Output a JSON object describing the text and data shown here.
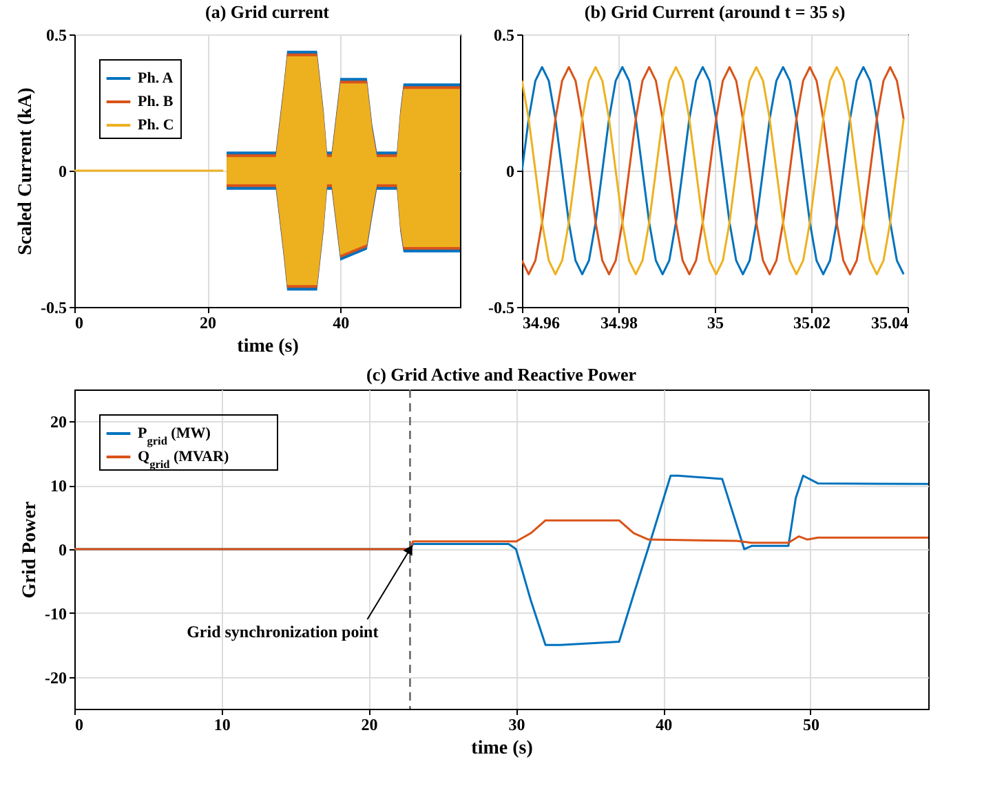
{
  "chart_data": [
    {
      "type": "line",
      "title": "(a) Grid current",
      "xlabel": "time (s)",
      "ylabel": "Scaled Current (kA)",
      "xlim": [
        0,
        58
      ],
      "xticks": [
        0,
        20,
        40
      ],
      "ylim": [
        -0.5,
        0.5
      ],
      "yticks": [
        -0.5,
        0,
        0.5
      ],
      "grid": true,
      "legend": "top left",
      "x": [
        0,
        22.4,
        22.9,
        30.3,
        31.5,
        32,
        36.5,
        37.5,
        38,
        38.7,
        40,
        44,
        44.8,
        45.5,
        48.5,
        49,
        49.5,
        58
      ],
      "series": [
        {
          "name": "Ph. A",
          "color": "#0072bd",
          "values": [
            null,
            null,
            null,
            null,
            null,
            null,
            null,
            null,
            null,
            null,
            null,
            null,
            null,
            null,
            null,
            null,
            null,
            null
          ],
          "lower": [
            null,
            null,
            -0.07,
            -0.07,
            -0.32,
            -0.44,
            -0.44,
            -0.22,
            -0.07,
            -0.07,
            -0.33,
            -0.29,
            -0.17,
            -0.07,
            -0.07,
            -0.22,
            -0.3,
            -0.3
          ],
          "upper": [
            null,
            null,
            0.07,
            0.07,
            0.32,
            0.44,
            0.44,
            0.22,
            0.07,
            0.07,
            0.34,
            0.34,
            0.17,
            0.07,
            0.07,
            0.22,
            0.32,
            0.32
          ]
        },
        {
          "name": "Ph. B",
          "color": "#d95319",
          "values": [
            null,
            null,
            null,
            null,
            null,
            null,
            null,
            null,
            null,
            null,
            null,
            null,
            null,
            null,
            null,
            null,
            null,
            null
          ],
          "lower": [
            null,
            null,
            -0.06,
            -0.06,
            -0.31,
            -0.43,
            -0.43,
            -0.21,
            -0.06,
            -0.06,
            -0.32,
            -0.28,
            -0.16,
            -0.06,
            -0.06,
            -0.21,
            -0.29,
            -0.29
          ],
          "upper": [
            null,
            null,
            0.06,
            0.06,
            0.31,
            0.43,
            0.43,
            0.21,
            0.06,
            0.06,
            0.33,
            0.33,
            0.16,
            0.06,
            0.06,
            0.21,
            0.31,
            0.31
          ]
        },
        {
          "name": "Ph. C",
          "color": "#edb120",
          "values": [
            0,
            0,
            null,
            null,
            null,
            null,
            null,
            null,
            null,
            null,
            null,
            null,
            null,
            null,
            null,
            null,
            null,
            null
          ],
          "lower": [
            null,
            null,
            -0.05,
            -0.05,
            -0.3,
            -0.42,
            -0.42,
            -0.2,
            -0.05,
            -0.05,
            -0.31,
            -0.27,
            -0.15,
            -0.05,
            -0.05,
            -0.2,
            -0.28,
            -0.28
          ],
          "upper": [
            null,
            null,
            0.05,
            0.05,
            0.3,
            0.42,
            0.42,
            0.2,
            0.05,
            0.05,
            0.32,
            0.32,
            0.15,
            0.05,
            0.05,
            0.2,
            0.3,
            0.3
          ]
        }
      ]
    },
    {
      "type": "line",
      "title": "(b) Grid Current (around t = 35 s)",
      "xlim": [
        34.96,
        35.04
      ],
      "xticks": [
        34.96,
        34.98,
        35,
        35.02,
        35.04
      ],
      "ylim": [
        -0.5,
        0.5
      ],
      "yticks": [
        -0.5,
        0,
        0.5
      ],
      "grid": true,
      "x": [
        34.96,
        34.96139,
        34.96278,
        34.96417,
        34.96556,
        34.96694,
        34.96833,
        34.96972,
        34.97111,
        34.9725,
        34.97389,
        34.97528,
        34.97667,
        34.97806,
        34.97944,
        34.98083,
        34.98222,
        34.98361,
        34.985,
        34.98639,
        34.98778,
        34.98917,
        34.99056,
        34.99194,
        34.99333,
        34.99472,
        34.99611,
        34.9975,
        34.99889,
        35.00028,
        35.00167,
        35.00306,
        35.00444,
        35.00583,
        35.00722,
        35.00861,
        35.01,
        35.01139,
        35.01278,
        35.01417,
        35.01556,
        35.01694,
        35.01833,
        35.01972,
        35.02111,
        35.0225,
        35.02389,
        35.02528,
        35.02667,
        35.02806,
        35.02944,
        35.03083,
        35.03222,
        35.03361,
        35.035,
        35.03639,
        35.03778,
        35.03917
      ],
      "series": [
        {
          "color": "#0072bd",
          "values": [
            0,
            0.19,
            0.33,
            0.38,
            0.33,
            0.19,
            0,
            -0.19,
            -0.33,
            -0.38,
            -0.33,
            -0.19,
            0,
            0.19,
            0.33,
            0.38,
            0.33,
            0.19,
            0,
            -0.19,
            -0.33,
            -0.38,
            -0.33,
            -0.19,
            0,
            0.19,
            0.33,
            0.38,
            0.33,
            0.19,
            0,
            -0.19,
            -0.33,
            -0.38,
            -0.33,
            -0.19,
            0,
            0.19,
            0.33,
            0.38,
            0.33,
            0.19,
            0,
            -0.19,
            -0.33,
            -0.38,
            -0.33,
            -0.19,
            0,
            0.19,
            0.33,
            0.38,
            0.33,
            0.19,
            0,
            -0.19,
            -0.33,
            -0.38
          ]
        },
        {
          "color": "#d95319",
          "values": [
            -0.33,
            -0.38,
            -0.33,
            -0.19,
            0,
            0.19,
            0.33,
            0.38,
            0.33,
            0.19,
            0,
            -0.19,
            -0.33,
            -0.38,
            -0.33,
            -0.19,
            0,
            0.19,
            0.33,
            0.38,
            0.33,
            0.19,
            0,
            -0.19,
            -0.33,
            -0.38,
            -0.33,
            -0.19,
            0,
            0.19,
            0.33,
            0.38,
            0.33,
            0.19,
            0,
            -0.19,
            -0.33,
            -0.38,
            -0.33,
            -0.19,
            0,
            0.19,
            0.33,
            0.38,
            0.33,
            0.19,
            0,
            -0.19,
            -0.33,
            -0.38,
            -0.33,
            -0.19,
            0,
            0.19,
            0.33,
            0.38,
            0.33,
            0.19
          ]
        },
        {
          "color": "#edb120",
          "values": [
            0.33,
            0.19,
            0,
            -0.19,
            -0.33,
            -0.38,
            -0.33,
            -0.19,
            0,
            0.19,
            0.33,
            0.38,
            0.33,
            0.19,
            0,
            -0.19,
            -0.33,
            -0.38,
            -0.33,
            -0.19,
            0,
            0.19,
            0.33,
            0.38,
            0.33,
            0.19,
            0,
            -0.19,
            -0.33,
            -0.38,
            -0.33,
            -0.19,
            0,
            0.19,
            0.33,
            0.38,
            0.33,
            0.19,
            0,
            -0.19,
            -0.33,
            -0.38,
            -0.33,
            -0.19,
            0,
            0.19,
            0.33,
            0.38,
            0.33,
            0.19,
            0,
            -0.19,
            -0.33,
            -0.38,
            -0.33,
            -0.19,
            0,
            0.19
          ]
        }
      ]
    },
    {
      "type": "line",
      "title": "(c) Grid Active and Reactive Power",
      "xlabel": "time (s)",
      "ylabel": "Grid Power",
      "xlim": [
        0,
        58
      ],
      "xticks": [
        0,
        10,
        20,
        30,
        40,
        50
      ],
      "ylim": [
        -25,
        25
      ],
      "yticks": [
        -20,
        -10,
        0,
        10,
        20
      ],
      "grid": true,
      "legend": "top left",
      "series": [
        {
          "name": "P$_{grid}$ (MW)",
          "color": "#0072bd",
          "x": [
            0,
            22.8,
            23,
            29.5,
            30,
            31,
            32,
            33,
            37,
            38,
            39,
            40.5,
            41,
            44,
            45.5,
            46,
            48.5,
            49,
            49.5,
            50.5,
            58
          ],
          "values": [
            0,
            0,
            0.8,
            0.8,
            0,
            -8,
            -15,
            -15,
            -14.5,
            -7,
            0.3,
            11.5,
            11.5,
            11,
            0,
            0.5,
            0.5,
            8,
            11.5,
            10.3,
            10.2
          ]
        },
        {
          "name": "Q$_{grid}$ (MVAR)",
          "color": "#d95319",
          "x": [
            0,
            22.8,
            23,
            30,
            31,
            32,
            37,
            38,
            39,
            45,
            46,
            48.5,
            49.2,
            49.8,
            50.5,
            58
          ],
          "values": [
            0,
            0,
            1.2,
            1.2,
            2.5,
            4.5,
            4.5,
            2.5,
            1.5,
            1.3,
            1,
            1,
            2,
            1.5,
            1.8,
            1.8
          ]
        }
      ],
      "ref_lines": [
        {
          "axis": "x",
          "value": 22.8,
          "color": "#666666",
          "line_style": "dashed"
        }
      ],
      "annotations": [
        {
          "text": "Grid synchronization point",
          "x": 22.8,
          "y": 0
        }
      ]
    }
  ]
}
